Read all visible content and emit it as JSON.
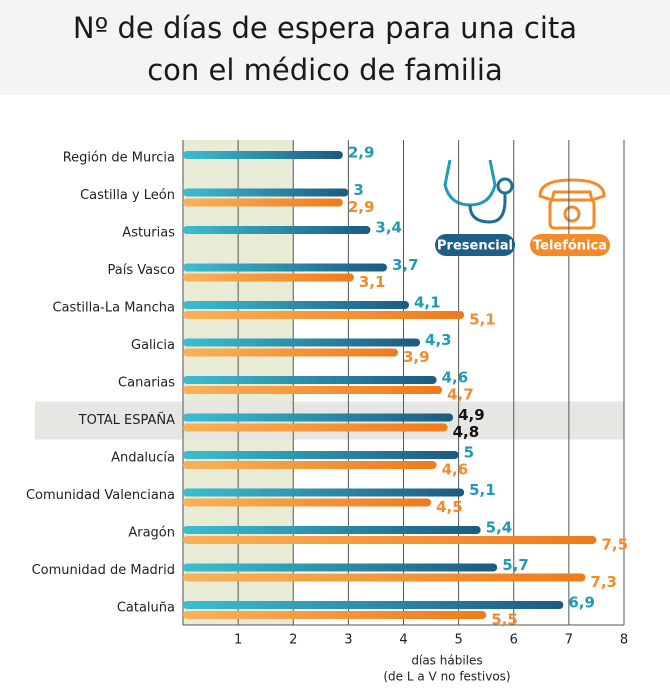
{
  "chart_data": {
    "type": "bar",
    "orientation": "horizontal",
    "title": [
      "Nº de días de espera para una cita",
      "con el médico de familia"
    ],
    "categories": [
      "Región de Murcia",
      "Castilla y León",
      "Asturias",
      "País Vasco",
      "Castilla-La Mancha",
      "Galicia",
      "Canarias",
      "TOTAL ESPAÑA",
      "Andalucía",
      "Comunidad Valenciana",
      "Aragón",
      "Comunidad de Madrid",
      "Cataluña"
    ],
    "series": [
      {
        "name": "Presencial",
        "color": "#1f9bb5",
        "values": [
          2.9,
          3,
          3.4,
          3.7,
          4.1,
          4.3,
          4.6,
          4.9,
          5,
          5.1,
          5.4,
          5.7,
          6.9
        ],
        "value_labels": [
          "2,9",
          "3",
          "3,4",
          "3,7",
          "4,1",
          "4,3",
          "4,6",
          "4,9",
          "5",
          "5,1",
          "5,4",
          "5,7",
          "6,9"
        ]
      },
      {
        "name": "Telefónica",
        "color": "#f58a2a",
        "values": [
          null,
          2.9,
          null,
          3.1,
          5.1,
          3.9,
          4.7,
          4.8,
          4.6,
          4.5,
          7.5,
          7.3,
          5.5
        ],
        "value_labels": [
          null,
          "2,9",
          null,
          "3,1",
          "5,1",
          "3,9",
          "4,7",
          "4,8",
          "4,6",
          "4,5",
          "7,5",
          "7,3",
          "5,5"
        ]
      }
    ],
    "xlim": [
      0,
      8
    ],
    "xticks": [
      1,
      2,
      3,
      4,
      5,
      6,
      7,
      8
    ],
    "grid": true,
    "xlabel": [
      "días hábiles",
      "(de L a V no festivos)"
    ],
    "highlight_xrange": [
      0,
      2
    ],
    "highlight_category_index": 7
  }
}
